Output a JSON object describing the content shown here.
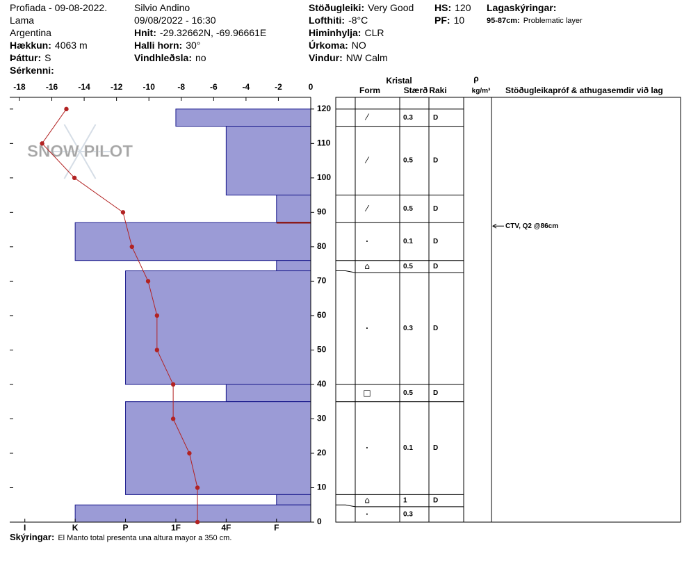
{
  "header": {
    "col1": [
      {
        "value": "Profiada - 09-08-2022."
      },
      {
        "value": "Lama"
      },
      {
        "value": "Argentina"
      },
      {
        "label": "Hækkun:",
        "value": "4063 m"
      },
      {
        "label": "Þáttur:",
        "value": "S"
      },
      {
        "label": "Sérkenni:"
      }
    ],
    "col2": [
      {
        "value": "Silvio Andino"
      },
      {
        "value": "09/08/2022 - 16:30"
      },
      {
        "label": "Hnit:",
        "value": "-29.32662N, -69.96661E"
      },
      {
        "label": "Halli horn:",
        "value": "30°"
      },
      {
        "label": "Vindhleðsla:",
        "value": "no"
      }
    ],
    "col3": [
      {
        "label": "Stöðugleiki:",
        "value": "Very Good"
      },
      {
        "label": "Lofthiti:",
        "value": "-8°C"
      },
      {
        "label": "Himinhylja:",
        "value": "CLR"
      },
      {
        "label": "Úrkoma:",
        "value": "NO"
      },
      {
        "label": "Vindur:",
        "value": "NW Calm"
      }
    ],
    "col4": [
      {
        "label": "HS:",
        "value": 120
      },
      {
        "label": "PF:",
        "value": 10
      }
    ],
    "col5": [
      {
        "label": "Lagaskýringar:"
      },
      {
        "label": "95-87cm:",
        "value": "Problematic layer"
      }
    ]
  },
  "watermark": "SNOW PILOT",
  "chart": {
    "type": "snow-profile",
    "temperature_axis": {
      "lim": [
        -18.6,
        0
      ],
      "ticks": [
        -18,
        -16,
        -14,
        -12,
        -10,
        -8,
        -6,
        -4,
        -2,
        0
      ]
    },
    "depth_axis": {
      "lim": [
        0,
        123.4
      ],
      "ticks": [
        0,
        10,
        20,
        30,
        40,
        50,
        60,
        70,
        80,
        90,
        100,
        110,
        120
      ]
    },
    "hardness_axis": {
      "lim": [
        6.3,
        0.32
      ],
      "ticks": [
        {
          "value": 6,
          "label": "I"
        },
        {
          "value": 5,
          "label": "K"
        },
        {
          "value": 4,
          "label": "P"
        },
        {
          "value": 3,
          "label": "1F"
        },
        {
          "value": 2,
          "label": "4F"
        },
        {
          "value": 1,
          "label": "F"
        }
      ]
    },
    "temperature": {
      "depths": [
        120,
        110,
        100,
        90,
        80,
        70,
        60,
        50,
        40,
        30,
        20,
        10,
        0
      ],
      "values": [
        -15.1,
        -16.6,
        -14.6,
        -11.6,
        -11.05,
        -10.05,
        -9.5,
        -9.5,
        -8.5,
        -8.5,
        -7.5,
        -7.0,
        -7.0
      ],
      "color": "#b22222"
    },
    "bar_color": "#9b9bd6",
    "layers": [
      {
        "top": 120,
        "bottom": 115,
        "hardness": 3,
        "form": "⁄",
        "size": 0.3,
        "wetness": "D"
      },
      {
        "top": 115,
        "bottom": 95,
        "hardness": 2,
        "form": "⁄",
        "size": 0.5,
        "wetness": "D"
      },
      {
        "top": 95,
        "bottom": 87,
        "hardness": 1,
        "form": "⁄",
        "size": 0.5,
        "wetness": "D"
      },
      {
        "top": 87,
        "bottom": 76,
        "hardness": 5,
        "form": "•",
        "size": 0.1,
        "wetness": "D"
      },
      {
        "top": 76,
        "bottom": 73,
        "hardness": 1,
        "form": "⌂",
        "size": 0.5,
        "wetness": "D"
      },
      {
        "top": 73,
        "bottom": 40,
        "hardness": 4,
        "form": "•",
        "size": 0.3,
        "wetness": "D"
      },
      {
        "top": 40,
        "bottom": 35,
        "hardness": 2,
        "form": "□",
        "size": 0.5,
        "wetness": "D"
      },
      {
        "top": 35,
        "bottom": 8,
        "hardness": 4,
        "form": "•",
        "size": 0.1,
        "wetness": "D"
      },
      {
        "top": 8,
        "bottom": 5,
        "hardness": 1,
        "form": "⌂",
        "size": 1,
        "wetness": "D"
      },
      {
        "top": 5,
        "bottom": 0,
        "hardness": 5,
        "form": "•",
        "size": 0.3
      }
    ],
    "problem_layer": {
      "top": 95,
      "bottom": 87
    },
    "tests": [
      {
        "depth": 86,
        "label": "CTV, Q2 @86cm"
      }
    ]
  },
  "table_header": {
    "crystal": "Kristal",
    "form": "Form",
    "size": "Stærð",
    "wetness": "Raki",
    "density_symbol": "ρ",
    "density_unit": "kg/m³",
    "comments": "Stöðugleikapróf & athugasemdir við lag"
  },
  "footer": {
    "label": "Skýringar:",
    "value": "El Manto total presenta una altura mayor a 350 cm."
  }
}
